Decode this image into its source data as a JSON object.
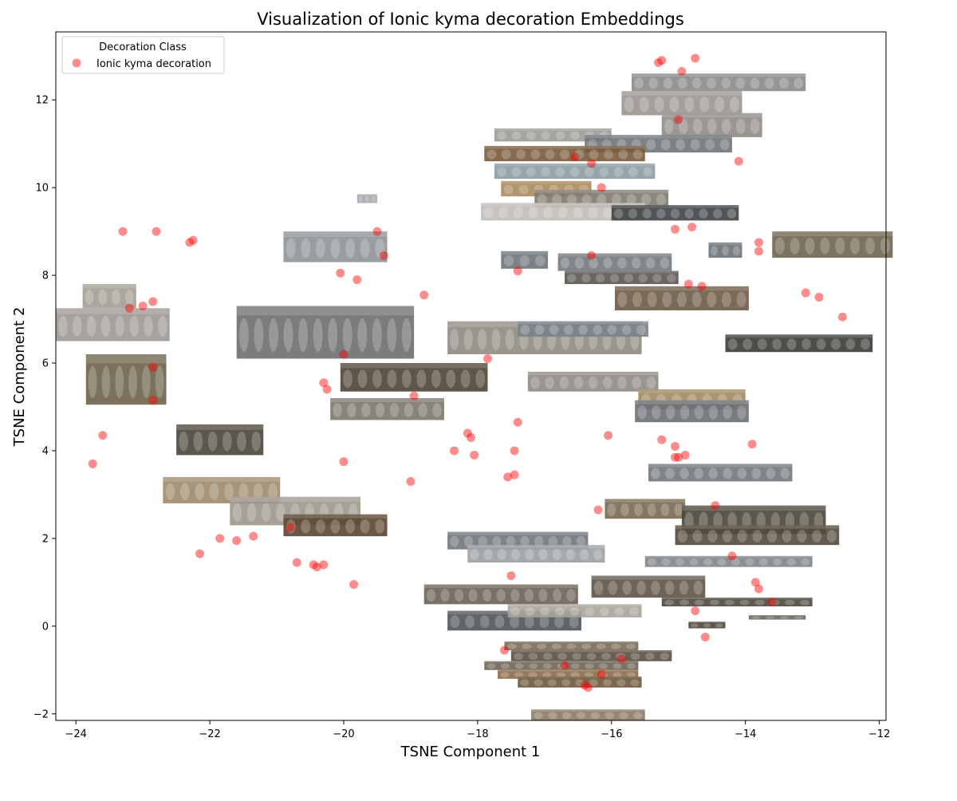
{
  "chart_data": {
    "type": "scatter",
    "title": "Visualization of Ionic kyma decoration Embeddings",
    "xlabel": "TSNE Component 1",
    "ylabel": "TSNE Component 2",
    "xlim": [
      -24.3,
      -11.9
    ],
    "ylim": [
      -2.15,
      13.55
    ],
    "xticks": [
      -24,
      -22,
      -20,
      -18,
      -16,
      -14,
      -12
    ],
    "xtick_labels": [
      "−24",
      "−22",
      "−20",
      "−18",
      "−16",
      "−14",
      "−12"
    ],
    "yticks": [
      -2,
      0,
      2,
      4,
      6,
      8,
      10,
      12
    ],
    "ytick_labels": [
      "−2",
      "0",
      "2",
      "4",
      "6",
      "8",
      "10",
      "12"
    ],
    "grid": false,
    "legend": {
      "title": "Decoration Class",
      "placement": "top-left",
      "entries": [
        "Ionic kyma decoration"
      ]
    },
    "series": [
      {
        "name": "Ionic kyma decoration",
        "color": "#ff0000",
        "alpha": 0.45,
        "marker": "circle",
        "points": [
          [
            -15.3,
            12.85
          ],
          [
            -15.25,
            12.9
          ],
          [
            -14.75,
            12.95
          ],
          [
            -14.95,
            12.65
          ],
          [
            -15.0,
            11.55
          ],
          [
            -14.1,
            10.6
          ],
          [
            -16.55,
            10.7
          ],
          [
            -16.3,
            10.55
          ],
          [
            -16.15,
            10.0
          ],
          [
            -15.05,
            9.05
          ],
          [
            -14.8,
            9.1
          ],
          [
            -13.8,
            8.75
          ],
          [
            -13.8,
            8.55
          ],
          [
            -16.3,
            8.45
          ],
          [
            -17.4,
            8.1
          ],
          [
            -14.85,
            7.8
          ],
          [
            -14.65,
            7.75
          ],
          [
            -13.1,
            7.6
          ],
          [
            -12.9,
            7.5
          ],
          [
            -12.55,
            7.05
          ],
          [
            -23.3,
            9.0
          ],
          [
            -22.8,
            9.0
          ],
          [
            -22.3,
            8.75
          ],
          [
            -22.25,
            8.8
          ],
          [
            -19.5,
            9.0
          ],
          [
            -19.4,
            8.45
          ],
          [
            -20.05,
            8.05
          ],
          [
            -19.8,
            7.9
          ],
          [
            -18.8,
            7.55
          ],
          [
            -22.85,
            7.4
          ],
          [
            -23.2,
            7.25
          ],
          [
            -23.0,
            7.3
          ],
          [
            -20.0,
            6.2
          ],
          [
            -17.85,
            6.1
          ],
          [
            -22.85,
            5.9
          ],
          [
            -22.85,
            5.15
          ],
          [
            -20.3,
            5.55
          ],
          [
            -20.25,
            5.4
          ],
          [
            -18.95,
            5.25
          ],
          [
            -17.4,
            4.65
          ],
          [
            -23.6,
            4.35
          ],
          [
            -23.75,
            3.7
          ],
          [
            -18.15,
            4.4
          ],
          [
            -18.1,
            4.3
          ],
          [
            -18.35,
            4.0
          ],
          [
            -18.05,
            3.9
          ],
          [
            -17.45,
            4.0
          ],
          [
            -20.0,
            3.75
          ],
          [
            -19.0,
            3.3
          ],
          [
            -17.55,
            3.4
          ],
          [
            -17.45,
            3.45
          ],
          [
            -16.05,
            4.35
          ],
          [
            -15.25,
            4.25
          ],
          [
            -15.05,
            4.1
          ],
          [
            -15.05,
            3.85
          ],
          [
            -15.0,
            3.85
          ],
          [
            -14.9,
            3.9
          ],
          [
            -13.9,
            4.15
          ],
          [
            -14.45,
            2.75
          ],
          [
            -16.2,
            2.65
          ],
          [
            -21.85,
            2.0
          ],
          [
            -21.6,
            1.95
          ],
          [
            -21.35,
            2.05
          ],
          [
            -20.8,
            2.25
          ],
          [
            -22.15,
            1.65
          ],
          [
            -20.7,
            1.45
          ],
          [
            -20.45,
            1.4
          ],
          [
            -20.4,
            1.35
          ],
          [
            -20.3,
            1.4
          ],
          [
            -19.85,
            0.95
          ],
          [
            -17.5,
            1.15
          ],
          [
            -14.2,
            1.6
          ],
          [
            -13.85,
            1.0
          ],
          [
            -13.8,
            0.85
          ],
          [
            -13.6,
            0.55
          ],
          [
            -14.75,
            0.35
          ],
          [
            -14.6,
            -0.25
          ],
          [
            -17.6,
            -0.55
          ],
          [
            -15.85,
            -0.75
          ],
          [
            -16.7,
            -0.9
          ],
          [
            -16.4,
            -1.35
          ],
          [
            -16.35,
            -1.4
          ],
          [
            -16.15,
            -1.1
          ]
        ]
      }
    ],
    "thumbnails": [
      {
        "x": [
          -15.7,
          -13.1
        ],
        "y": [
          12.2,
          12.6
        ],
        "tone": "#8a8a8a"
      },
      {
        "x": [
          -15.85,
          -14.05
        ],
        "y": [
          11.65,
          12.2
        ],
        "tone": "#9a958e"
      },
      {
        "x": [
          -15.25,
          -13.75
        ],
        "y": [
          11.15,
          11.7
        ],
        "tone": "#8f8b86"
      },
      {
        "x": [
          -17.75,
          -16.0
        ],
        "y": [
          11.05,
          11.35
        ],
        "tone": "#9b9b96"
      },
      {
        "x": [
          -16.4,
          -14.2
        ],
        "y": [
          10.8,
          11.2
        ],
        "tone": "#6f7478"
      },
      {
        "x": [
          -17.9,
          -15.5
        ],
        "y": [
          10.6,
          10.95
        ],
        "tone": "#7a5a3a"
      },
      {
        "x": [
          -17.75,
          -15.35
        ],
        "y": [
          10.2,
          10.55
        ],
        "tone": "#8c9aa0"
      },
      {
        "x": [
          -17.65,
          -16.3
        ],
        "y": [
          9.8,
          10.15
        ],
        "tone": "#a98a5e"
      },
      {
        "x": [
          -17.15,
          -15.15
        ],
        "y": [
          9.55,
          9.95
        ],
        "tone": "#7f7a70"
      },
      {
        "x": [
          -17.95,
          -15.5
        ],
        "y": [
          9.25,
          9.65
        ],
        "tone": "#c0bdb6"
      },
      {
        "x": [
          -16.0,
          -14.1
        ],
        "y": [
          9.25,
          9.6
        ],
        "tone": "#3f4245"
      },
      {
        "x": [
          -13.6,
          -11.8
        ],
        "y": [
          8.4,
          9.0
        ],
        "tone": "#6e6450"
      },
      {
        "x": [
          -14.55,
          -14.05
        ],
        "y": [
          8.4,
          8.75
        ],
        "tone": "#6a7278"
      },
      {
        "x": [
          -17.65,
          -16.95
        ],
        "y": [
          8.15,
          8.55
        ],
        "tone": "#6c7478"
      },
      {
        "x": [
          -16.8,
          -15.1
        ],
        "y": [
          8.1,
          8.5
        ],
        "tone": "#727a80"
      },
      {
        "x": [
          -16.7,
          -15.0
        ],
        "y": [
          7.8,
          8.1
        ],
        "tone": "#5a5650"
      },
      {
        "x": [
          -15.95,
          -13.95
        ],
        "y": [
          7.2,
          7.75
        ],
        "tone": "#6b5a44"
      },
      {
        "x": [
          -14.3,
          -12.1
        ],
        "y": [
          6.25,
          6.65
        ],
        "tone": "#3c3a36"
      },
      {
        "x": [
          -20.9,
          -19.35
        ],
        "y": [
          8.3,
          9.0
        ],
        "tone": "#8e9296"
      },
      {
        "x": [
          -19.8,
          -19.5
        ],
        "y": [
          9.65,
          9.85
        ],
        "tone": "#a4a8ac"
      },
      {
        "x": [
          -23.9,
          -23.1
        ],
        "y": [
          7.25,
          7.8
        ],
        "tone": "#a29d95"
      },
      {
        "x": [
          -24.3,
          -22.6
        ],
        "y": [
          6.5,
          7.25
        ],
        "tone": "#9d9892"
      },
      {
        "x": [
          -23.85,
          -22.65
        ],
        "y": [
          5.05,
          6.2
        ],
        "tone": "#6e6248"
      },
      {
        "x": [
          -22.5,
          -21.2
        ],
        "y": [
          3.9,
          4.6
        ],
        "tone": "#4a4538"
      },
      {
        "x": [
          -21.6,
          -18.95
        ],
        "y": [
          6.1,
          7.3
        ],
        "tone": "#6b6e70"
      },
      {
        "x": [
          -20.05,
          -17.85
        ],
        "y": [
          5.35,
          6.0
        ],
        "tone": "#4e4436"
      },
      {
        "x": [
          -20.2,
          -18.5
        ],
        "y": [
          4.7,
          5.2
        ],
        "tone": "#7c766c"
      },
      {
        "x": [
          -18.45,
          -15.55
        ],
        "y": [
          6.2,
          6.95
        ],
        "tone": "#8f8a82"
      },
      {
        "x": [
          -17.4,
          -15.45
        ],
        "y": [
          6.6,
          6.95
        ],
        "tone": "#7c8288"
      },
      {
        "x": [
          -17.25,
          -15.3
        ],
        "y": [
          5.35,
          5.8
        ],
        "tone": "#8e8a84"
      },
      {
        "x": [
          -15.6,
          -14.0
        ],
        "y": [
          4.95,
          5.4
        ],
        "tone": "#a08a60"
      },
      {
        "x": [
          -15.65,
          -13.95
        ],
        "y": [
          4.65,
          5.15
        ],
        "tone": "#6a6e74"
      },
      {
        "x": [
          -15.45,
          -13.3
        ],
        "y": [
          3.3,
          3.7
        ],
        "tone": "#72777c"
      },
      {
        "x": [
          -22.7,
          -20.95
        ],
        "y": [
          2.8,
          3.4
        ],
        "tone": "#9e8a6a"
      },
      {
        "x": [
          -21.7,
          -19.75
        ],
        "y": [
          2.3,
          2.95
        ],
        "tone": "#9c968c"
      },
      {
        "x": [
          -20.9,
          -19.35
        ],
        "y": [
          2.05,
          2.55
        ],
        "tone": "#5b4630"
      },
      {
        "x": [
          -18.45,
          -16.35
        ],
        "y": [
          1.75,
          2.15
        ],
        "tone": "#70767a"
      },
      {
        "x": [
          -18.15,
          -16.1
        ],
        "y": [
          1.45,
          1.85
        ],
        "tone": "#9aa0a4"
      },
      {
        "x": [
          -16.1,
          -14.9
        ],
        "y": [
          2.45,
          2.9
        ],
        "tone": "#7a6a50"
      },
      {
        "x": [
          -14.95,
          -12.8
        ],
        "y": [
          2.1,
          2.75
        ],
        "tone": "#4a4438"
      },
      {
        "x": [
          -15.05,
          -12.6
        ],
        "y": [
          1.85,
          2.3
        ],
        "tone": "#54493a"
      },
      {
        "x": [
          -15.5,
          -13.0
        ],
        "y": [
          1.35,
          1.6
        ],
        "tone": "#7e8488"
      },
      {
        "x": [
          -18.8,
          -16.5
        ],
        "y": [
          0.5,
          0.95
        ],
        "tone": "#6a6258"
      },
      {
        "x": [
          -16.3,
          -14.6
        ],
        "y": [
          0.65,
          1.15
        ],
        "tone": "#5e5446"
      },
      {
        "x": [
          -15.25,
          -13.0
        ],
        "y": [
          0.45,
          0.65
        ],
        "tone": "#4c4840"
      },
      {
        "x": [
          -18.45,
          -16.45
        ],
        "y": [
          -0.1,
          0.35
        ],
        "tone": "#4e5458"
      },
      {
        "x": [
          -17.55,
          -15.55
        ],
        "y": [
          0.2,
          0.5
        ],
        "tone": "#a8a49c"
      },
      {
        "x": [
          -14.85,
          -14.3
        ],
        "y": [
          -0.05,
          0.1
        ],
        "tone": "#4a443c"
      },
      {
        "x": [
          -13.95,
          -13.1
        ],
        "y": [
          0.15,
          0.25
        ],
        "tone": "#6a6660"
      },
      {
        "x": [
          -17.6,
          -15.6
        ],
        "y": [
          -0.55,
          -0.35
        ],
        "tone": "#7a6a56"
      },
      {
        "x": [
          -17.5,
          -15.1
        ],
        "y": [
          -0.8,
          -0.55
        ],
        "tone": "#5a4e40"
      },
      {
        "x": [
          -17.9,
          -15.6
        ],
        "y": [
          -1.0,
          -0.8
        ],
        "tone": "#6e6452"
      },
      {
        "x": [
          -17.7,
          -15.6
        ],
        "y": [
          -1.2,
          -1.0
        ],
        "tone": "#8a6a48"
      },
      {
        "x": [
          -17.4,
          -15.55
        ],
        "y": [
          -1.4,
          -1.15
        ],
        "tone": "#6b563a"
      },
      {
        "x": [
          -17.2,
          -15.5
        ],
        "y": [
          -2.15,
          -1.9
        ],
        "tone": "#8a7a64"
      }
    ]
  }
}
